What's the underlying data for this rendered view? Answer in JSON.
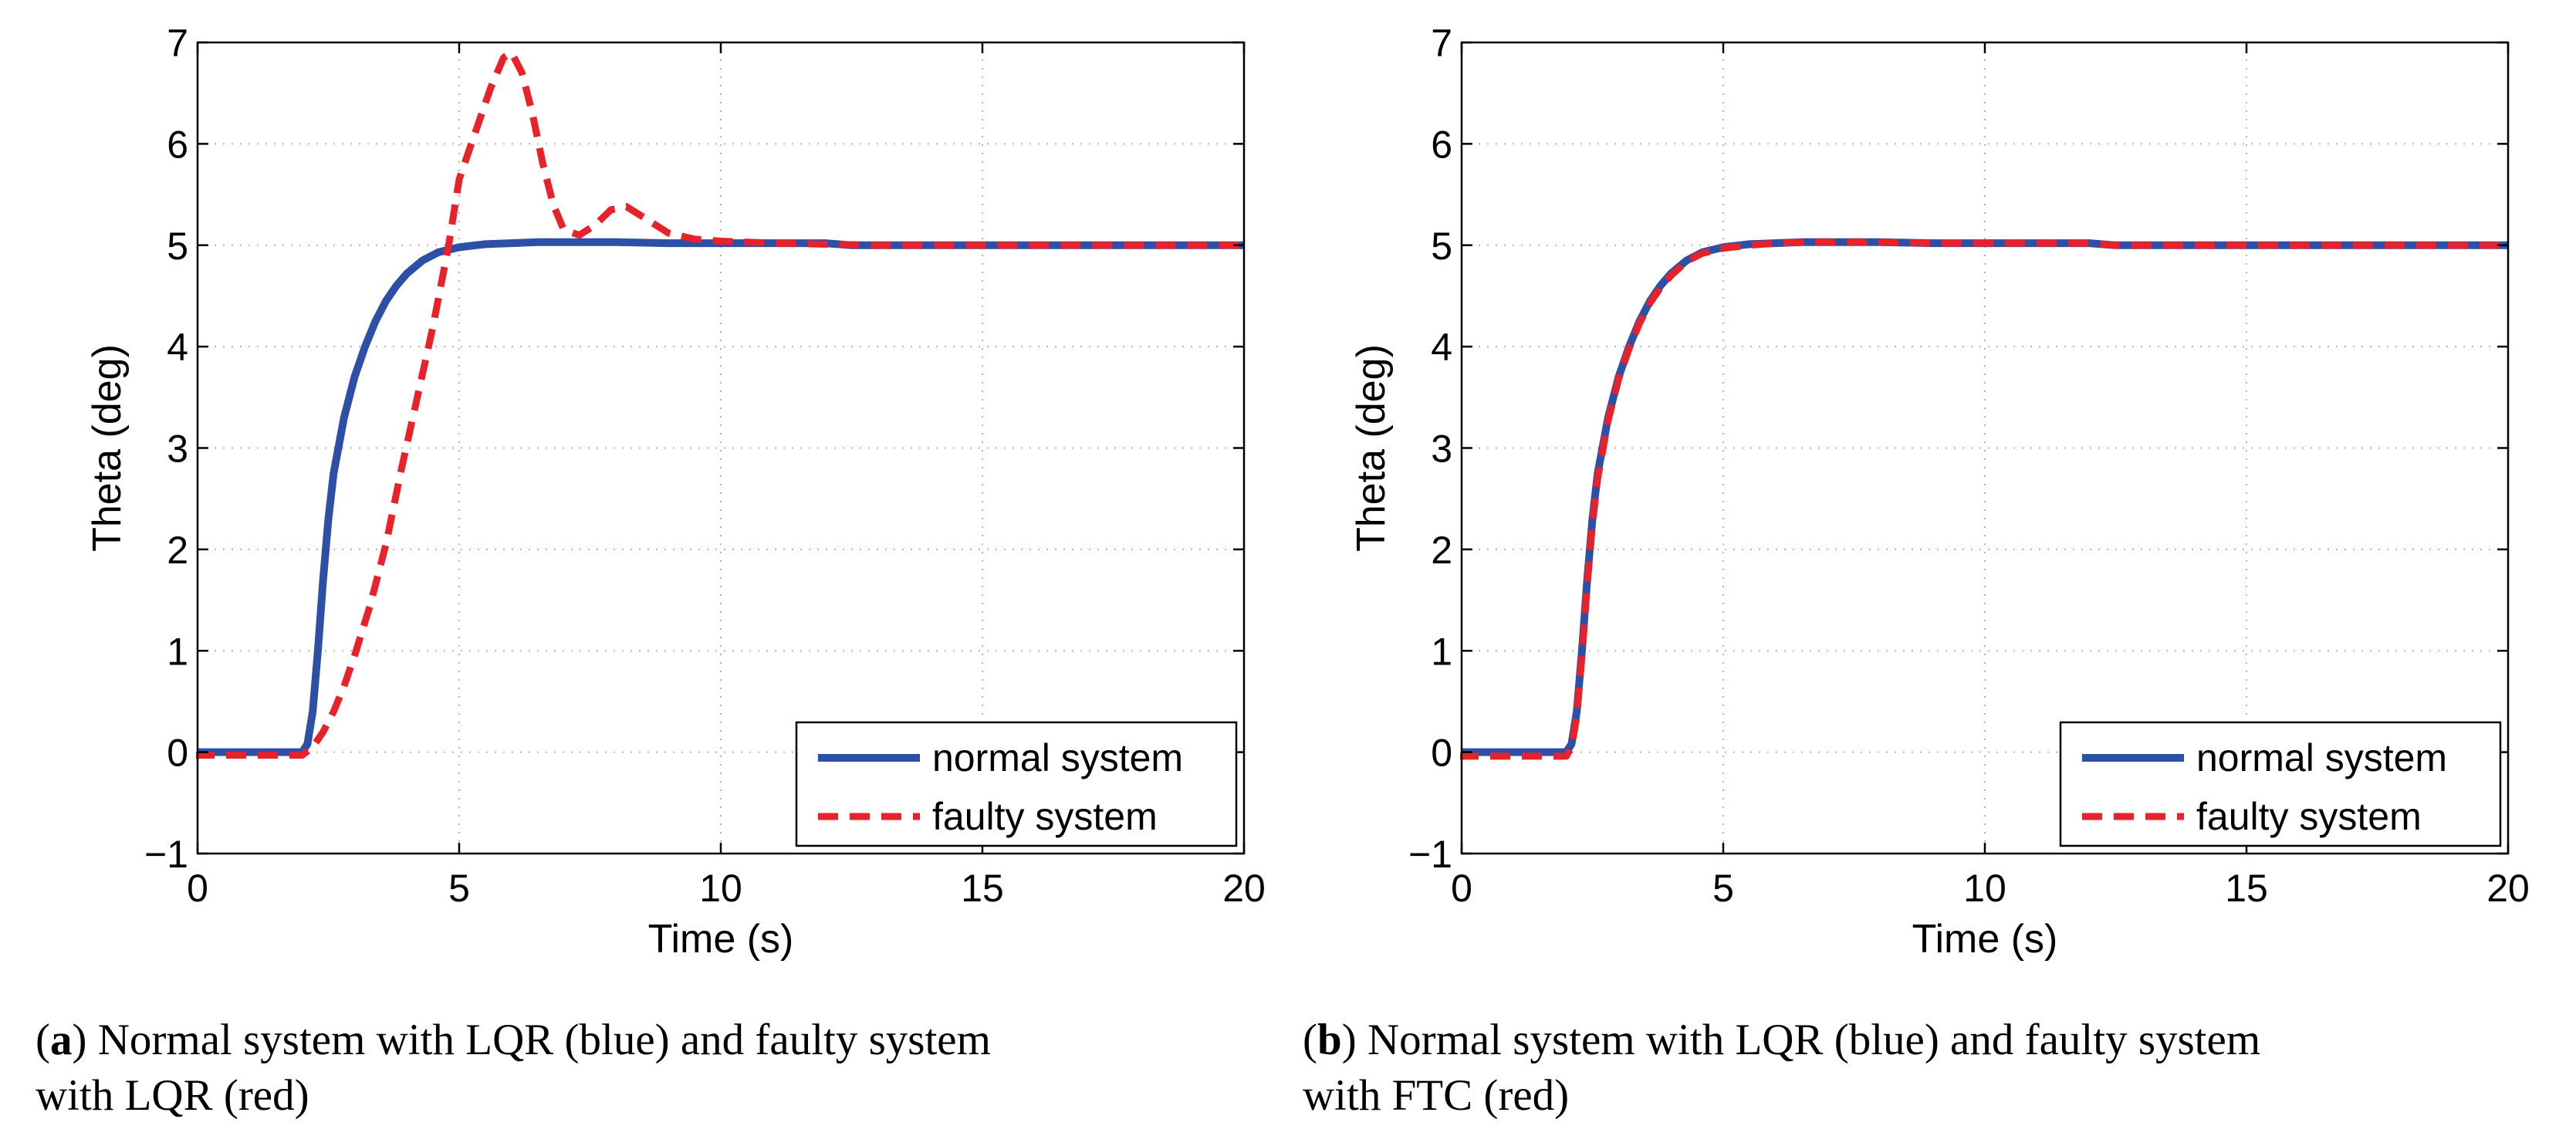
{
  "colors": {
    "normal": "#2e4fa6",
    "faulty": "#e8222b",
    "grid": "#b5b5b5",
    "axis": "#000000"
  },
  "chart_data": [
    {
      "type": "line",
      "panel": "a",
      "title": "",
      "xlabel": "Time (s)",
      "ylabel": "Theta (deg)",
      "xlim": [
        0,
        20
      ],
      "ylim": [
        -1,
        7
      ],
      "xticks": [
        0,
        5,
        10,
        15,
        20
      ],
      "yticks": [
        -1,
        0,
        1,
        2,
        3,
        4,
        5,
        6,
        7
      ],
      "ytick_labels": [
        "−1",
        "0",
        "1",
        "2",
        "3",
        "4",
        "5",
        "6",
        "7"
      ],
      "grid": true,
      "legend_position": "bottom-right",
      "series": [
        {
          "name": "normal system",
          "style": "solid",
          "x": [
            0,
            2.0,
            2.1,
            2.2,
            2.3,
            2.4,
            2.5,
            2.6,
            2.8,
            3.0,
            3.2,
            3.4,
            3.6,
            3.8,
            4.0,
            4.3,
            4.6,
            5.0,
            5.5,
            6.0,
            6.5,
            7.0,
            8.0,
            9.0,
            10.0,
            12.0,
            12.5,
            15.0,
            20.0
          ],
          "y": [
            0,
            0,
            0.08,
            0.4,
            1.0,
            1.7,
            2.3,
            2.75,
            3.3,
            3.7,
            4.0,
            4.25,
            4.45,
            4.6,
            4.72,
            4.85,
            4.93,
            4.98,
            5.01,
            5.02,
            5.03,
            5.03,
            5.03,
            5.02,
            5.02,
            5.02,
            5.0,
            5.0,
            5.0
          ]
        },
        {
          "name": "faulty system",
          "style": "dashed",
          "x": [
            -0.2,
            2.0,
            2.2,
            2.4,
            2.6,
            2.8,
            3.0,
            3.3,
            3.6,
            3.9,
            4.2,
            4.5,
            4.8,
            5.0,
            5.3,
            5.6,
            5.85,
            6.0,
            6.2,
            6.4,
            6.6,
            6.8,
            7.0,
            7.3,
            7.6,
            7.9,
            8.2,
            8.6,
            9.0,
            9.5,
            10.0,
            10.5,
            11.0,
            12.0,
            13.0,
            15.0,
            20.0
          ],
          "y": [
            -0.03,
            -0.03,
            0.05,
            0.2,
            0.4,
            0.65,
            0.95,
            1.45,
            2.05,
            2.8,
            3.5,
            4.2,
            5.0,
            5.65,
            6.1,
            6.55,
            6.85,
            6.9,
            6.7,
            6.3,
            5.8,
            5.4,
            5.15,
            5.1,
            5.2,
            5.35,
            5.38,
            5.25,
            5.12,
            5.06,
            5.04,
            5.03,
            5.02,
            5.01,
            5.0,
            5.0,
            5.0
          ]
        }
      ]
    },
    {
      "type": "line",
      "panel": "b",
      "title": "",
      "xlabel": "Time (s)",
      "ylabel": "Theta (deg)",
      "xlim": [
        0,
        20
      ],
      "ylim": [
        -1,
        7
      ],
      "xticks": [
        0,
        5,
        10,
        15,
        20
      ],
      "yticks": [
        -1,
        0,
        1,
        2,
        3,
        4,
        5,
        6,
        7
      ],
      "ytick_labels": [
        "−1",
        "0",
        "1",
        "2",
        "3",
        "4",
        "5",
        "6",
        "7"
      ],
      "grid": true,
      "legend_position": "bottom-right",
      "series": [
        {
          "name": "normal system",
          "style": "solid",
          "x": [
            0,
            2.0,
            2.1,
            2.2,
            2.3,
            2.4,
            2.5,
            2.6,
            2.8,
            3.0,
            3.2,
            3.4,
            3.6,
            3.8,
            4.0,
            4.3,
            4.6,
            5.0,
            5.5,
            6.0,
            6.5,
            7.0,
            8.0,
            9.0,
            10.0,
            12.0,
            12.5,
            15.0,
            20.0
          ],
          "y": [
            0,
            0,
            0.08,
            0.4,
            1.0,
            1.7,
            2.3,
            2.75,
            3.3,
            3.7,
            4.0,
            4.25,
            4.45,
            4.6,
            4.72,
            4.85,
            4.93,
            4.98,
            5.01,
            5.02,
            5.03,
            5.03,
            5.03,
            5.02,
            5.02,
            5.02,
            5.0,
            5.0,
            5.0
          ]
        },
        {
          "name": "faulty system",
          "style": "dashed",
          "x": [
            -0.2,
            2.0,
            2.1,
            2.2,
            2.3,
            2.4,
            2.5,
            2.6,
            2.8,
            3.0,
            3.2,
            3.4,
            3.6,
            3.8,
            4.0,
            4.3,
            4.6,
            5.0,
            5.5,
            6.0,
            6.5,
            7.0,
            8.0,
            9.0,
            10.0,
            12.0,
            12.5,
            15.0,
            20.0
          ],
          "y": [
            -0.04,
            -0.04,
            0.05,
            0.35,
            0.95,
            1.65,
            2.25,
            2.7,
            3.27,
            3.68,
            3.98,
            4.23,
            4.43,
            4.58,
            4.7,
            4.84,
            4.92,
            4.97,
            5.0,
            5.02,
            5.03,
            5.03,
            5.03,
            5.02,
            5.02,
            5.02,
            5.0,
            5.0,
            5.0
          ]
        }
      ]
    }
  ],
  "captions": [
    {
      "tag": "a",
      "line1": "Normal system with LQR (blue) and faulty system",
      "line2": "with LQR (red)"
    },
    {
      "tag": "b",
      "line1": "Normal system with LQR (blue) and faulty system",
      "line2": "with FTC (red)"
    }
  ]
}
